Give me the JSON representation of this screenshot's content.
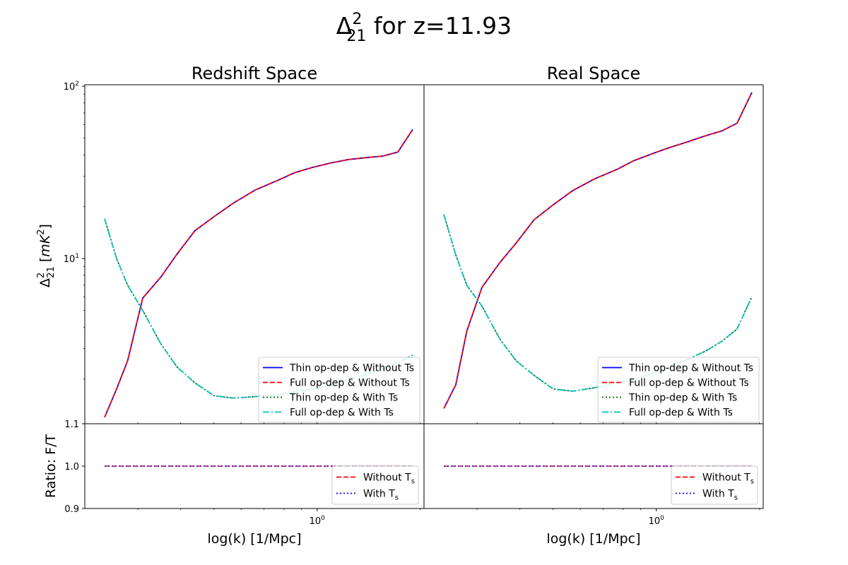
{
  "figure": {
    "title_base": "Δ",
    "title_sup": "2",
    "title_sub": "21",
    "title_rest": " for z=11.93"
  },
  "y_label": {
    "base": "Δ",
    "sup": "2",
    "sub": "21",
    "rest": " [",
    "unit": "mK",
    "unit_sup": "2",
    "close": "]"
  },
  "ratio_label": "Ratio: F/T",
  "x_label": "log(k) [1/Mpc]",
  "legend_main": [
    {
      "label": "Thin op-dep & Without Ts",
      "color": "#0000ff",
      "dash": "solid"
    },
    {
      "label": "Full op-dep & Without Ts",
      "color": "#ff0000",
      "dash": "dashed"
    },
    {
      "label": "Thin op-dep & With Ts",
      "color": "#006400",
      "dash": "dotted"
    },
    {
      "label": "Full op-dep & With Ts",
      "color": "#00bfbf",
      "dash": "dashdot"
    }
  ],
  "legend_ratio": [
    {
      "label": "Without T",
      "sub": "s",
      "color": "#ff0000",
      "dash": "dashed"
    },
    {
      "label": "With T",
      "sub": "s",
      "color": "#0000ff",
      "dash": "dotted"
    }
  ],
  "chart_data": [
    {
      "type": "line",
      "title": "Redshift Space",
      "x_scale": "log",
      "y_scale": "log",
      "xlim": [
        0.21,
        2.05
      ],
      "ylim": [
        1.1,
        102
      ],
      "xticks": [
        {
          "value": 1.0,
          "base": "10",
          "exp": "0"
        }
      ],
      "yticks": [
        {
          "value": 100,
          "base": "10",
          "exp": "2"
        },
        {
          "value": 10,
          "base": "10",
          "exp": "1"
        },
        {
          "value": 1.1,
          "label": "1.1"
        }
      ],
      "x": [
        0.24,
        0.26,
        0.28,
        0.31,
        0.35,
        0.39,
        0.44,
        0.5,
        0.57,
        0.66,
        0.77,
        0.86,
        0.97,
        1.09,
        1.23,
        1.39,
        1.55,
        1.72,
        1.9
      ],
      "series": [
        {
          "name": "Thin op-dep & Without Ts",
          "values": [
            1.2,
            1.75,
            2.55,
            5.9,
            7.8,
            10.6,
            14.5,
            17.5,
            21.0,
            25.0,
            28.5,
            31.5,
            33.8,
            35.8,
            37.5,
            38.5,
            39.3,
            41.5,
            56.0
          ]
        },
        {
          "name": "Full op-dep & Without Ts",
          "values": [
            1.2,
            1.75,
            2.55,
            5.9,
            7.8,
            10.6,
            14.5,
            17.5,
            21.0,
            25.0,
            28.5,
            31.5,
            33.8,
            35.8,
            37.5,
            38.5,
            39.3,
            41.5,
            56.0
          ]
        },
        {
          "name": "Thin op-dep & With Ts",
          "values": [
            17.0,
            10.0,
            7.0,
            5.0,
            3.2,
            2.35,
            1.9,
            1.6,
            1.55,
            1.58,
            1.62,
            1.68,
            1.75,
            1.85,
            1.98,
            2.12,
            2.3,
            2.5,
            2.75
          ]
        },
        {
          "name": "Full op-dep & With Ts",
          "values": [
            17.0,
            10.0,
            7.0,
            5.0,
            3.2,
            2.35,
            1.9,
            1.6,
            1.55,
            1.58,
            1.62,
            1.68,
            1.75,
            1.85,
            1.98,
            2.12,
            2.3,
            2.5,
            2.75
          ]
        }
      ],
      "ratio": {
        "ylim": [
          0.9,
          1.1
        ],
        "yticks": [
          {
            "value": 1.0,
            "label": "1.0"
          },
          {
            "value": 0.9,
            "label": "0.9"
          }
        ],
        "series": [
          {
            "name": "Without Ts",
            "values": [
              1.0,
              1.0,
              1.0,
              1.0,
              1.0,
              1.0,
              1.0,
              1.0,
              1.0,
              1.0,
              1.0,
              1.0,
              1.0,
              1.0,
              1.0,
              1.0,
              1.0,
              1.0,
              1.0
            ]
          },
          {
            "name": "With Ts",
            "values": [
              1.0,
              1.0,
              1.0,
              1.0,
              1.0,
              1.0,
              1.0,
              1.0,
              1.0,
              1.0,
              1.0,
              1.0,
              1.0,
              1.0,
              1.0,
              1.0,
              1.0,
              1.0,
              1.0
            ]
          }
        ]
      }
    },
    {
      "type": "line",
      "title": "Real Space",
      "x_scale": "log",
      "y_scale": "log",
      "xlim": [
        0.21,
        2.05
      ],
      "ylim": [
        1.1,
        102
      ],
      "xticks": [
        {
          "value": 1.0,
          "base": "10",
          "exp": "0"
        }
      ],
      "yticks": [],
      "x": [
        0.24,
        0.26,
        0.28,
        0.31,
        0.35,
        0.39,
        0.44,
        0.5,
        0.57,
        0.66,
        0.77,
        0.86,
        0.97,
        1.09,
        1.23,
        1.39,
        1.55,
        1.72,
        1.9
      ],
      "series": [
        {
          "name": "Thin op-dep & Without Ts",
          "values": [
            1.35,
            1.85,
            3.8,
            6.8,
            9.5,
            12.3,
            16.8,
            20.5,
            24.8,
            29.0,
            33.0,
            37.0,
            40.5,
            44.0,
            47.5,
            51.5,
            55.0,
            61.0,
            92.0
          ]
        },
        {
          "name": "Full op-dep & Without Ts",
          "values": [
            1.35,
            1.85,
            3.8,
            6.8,
            9.5,
            12.3,
            16.8,
            20.5,
            24.8,
            29.0,
            33.0,
            37.0,
            40.5,
            44.0,
            47.5,
            51.5,
            55.0,
            61.0,
            92.0
          ]
        },
        {
          "name": "Thin op-dep & With Ts",
          "values": [
            18.0,
            10.5,
            7.0,
            5.3,
            3.4,
            2.55,
            2.1,
            1.75,
            1.7,
            1.78,
            1.9,
            2.0,
            2.15,
            2.35,
            2.6,
            2.9,
            3.3,
            3.9,
            6.0
          ]
        },
        {
          "name": "Full op-dep & With Ts",
          "values": [
            18.0,
            10.5,
            7.0,
            5.3,
            3.4,
            2.55,
            2.1,
            1.75,
            1.7,
            1.78,
            1.9,
            2.0,
            2.15,
            2.35,
            2.6,
            2.9,
            3.3,
            3.9,
            6.0
          ]
        }
      ],
      "ratio": {
        "ylim": [
          0.9,
          1.1
        ],
        "yticks": [],
        "series": [
          {
            "name": "Without Ts",
            "values": [
              1.0,
              1.0,
              1.0,
              1.0,
              1.0,
              1.0,
              1.0,
              1.0,
              1.0,
              1.0,
              1.0,
              1.0,
              1.0,
              1.0,
              1.0,
              1.0,
              1.0,
              1.0,
              1.0
            ]
          },
          {
            "name": "With Ts",
            "values": [
              1.0,
              1.0,
              1.0,
              1.0,
              1.0,
              1.0,
              1.0,
              1.0,
              1.0,
              1.0,
              1.0,
              1.0,
              1.0,
              1.0,
              1.0,
              1.0,
              1.0,
              1.0,
              1.0
            ]
          }
        ]
      }
    }
  ]
}
